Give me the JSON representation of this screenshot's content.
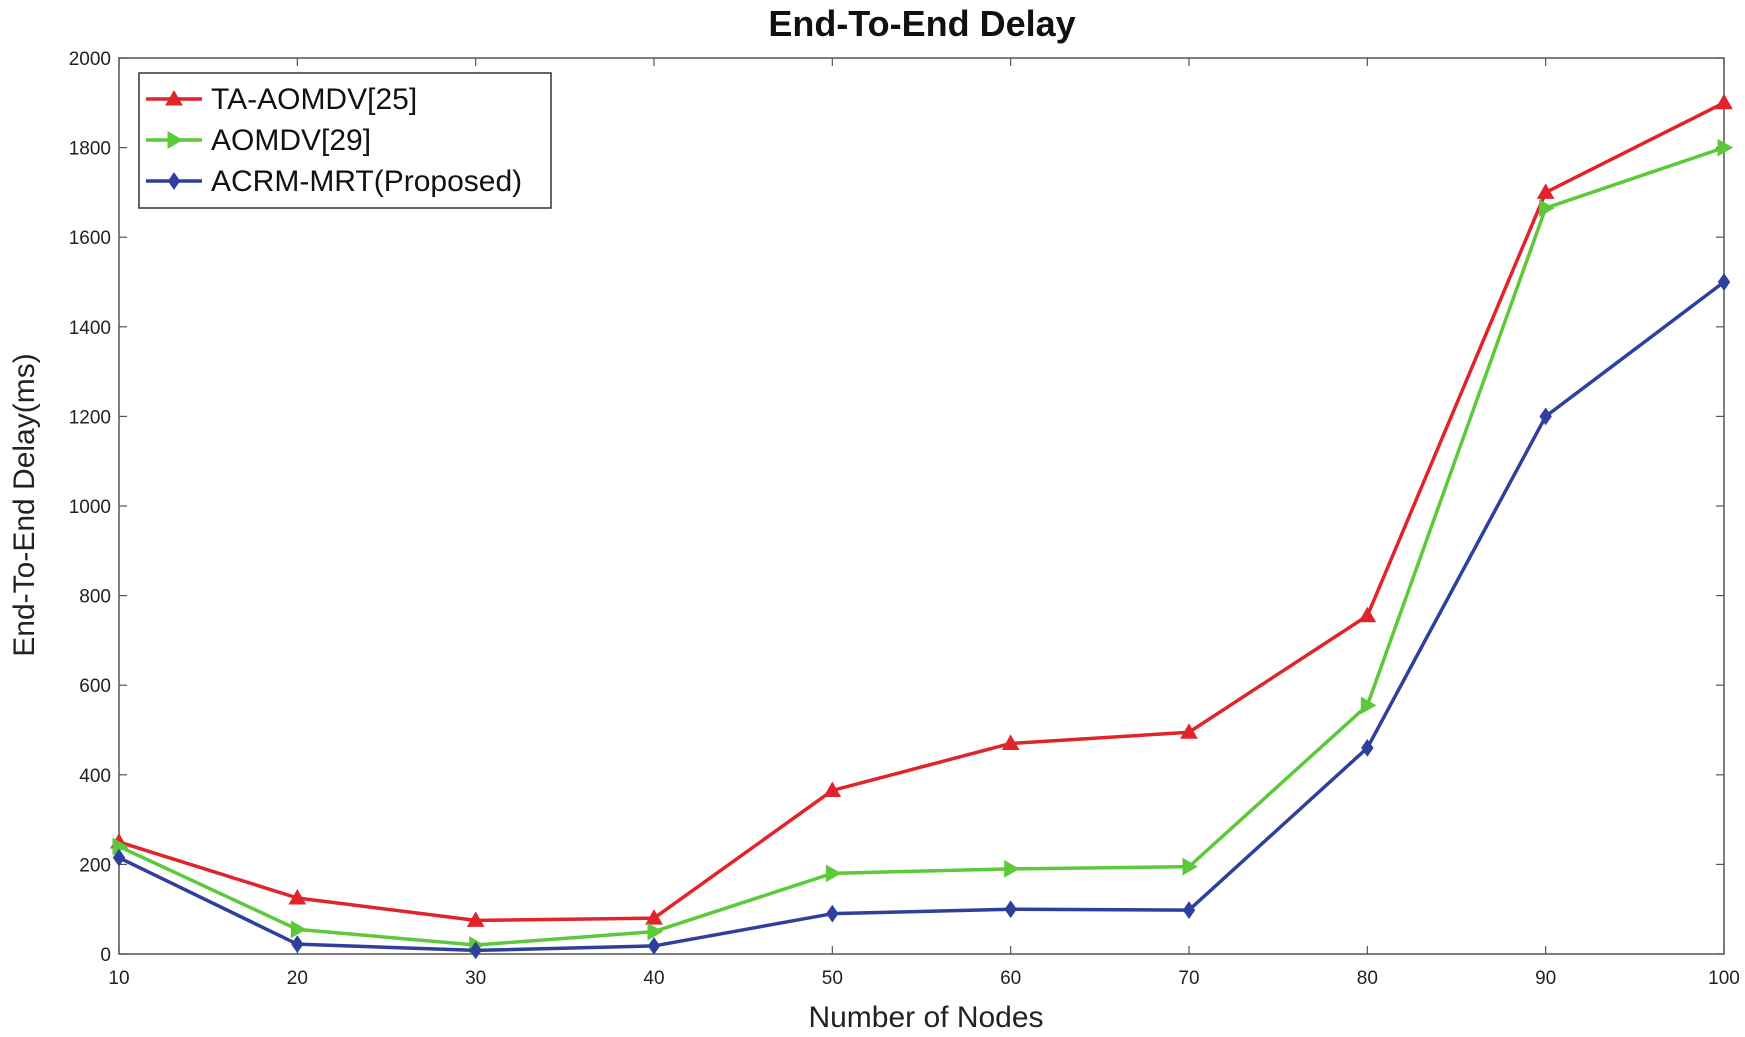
{
  "chart_data": {
    "type": "line",
    "title": "End-To-End Delay",
    "xlabel": "Number of Nodes",
    "ylabel": "End-To-End Delay(ms)",
    "x": [
      10,
      20,
      30,
      40,
      50,
      60,
      70,
      80,
      90,
      100
    ],
    "xlim": [
      10,
      100
    ],
    "ylim": [
      0,
      2000
    ],
    "xticks": [
      10,
      20,
      30,
      40,
      50,
      60,
      70,
      80,
      90,
      100
    ],
    "yticks": [
      0,
      200,
      400,
      600,
      800,
      1000,
      1200,
      1400,
      1600,
      1800,
      2000
    ],
    "grid": false,
    "legend_position": "top-left",
    "series": [
      {
        "name": "TA-AOMDV[25]",
        "color": "#e0242a",
        "marker": "triangle-up",
        "values": [
          250,
          125,
          75,
          80,
          365,
          470,
          495,
          755,
          1700,
          1900
        ]
      },
      {
        "name": "AOMDV[29]",
        "color": "#5cc93b",
        "marker": "triangle-right",
        "values": [
          240,
          55,
          20,
          50,
          180,
          190,
          195,
          555,
          1665,
          1800
        ]
      },
      {
        "name": "ACRM-MRT(Proposed)",
        "color": "#2f3f9e",
        "marker": "diamond",
        "values": [
          215,
          22,
          8,
          18,
          90,
          100,
          98,
          460,
          1200,
          1500
        ]
      }
    ]
  }
}
